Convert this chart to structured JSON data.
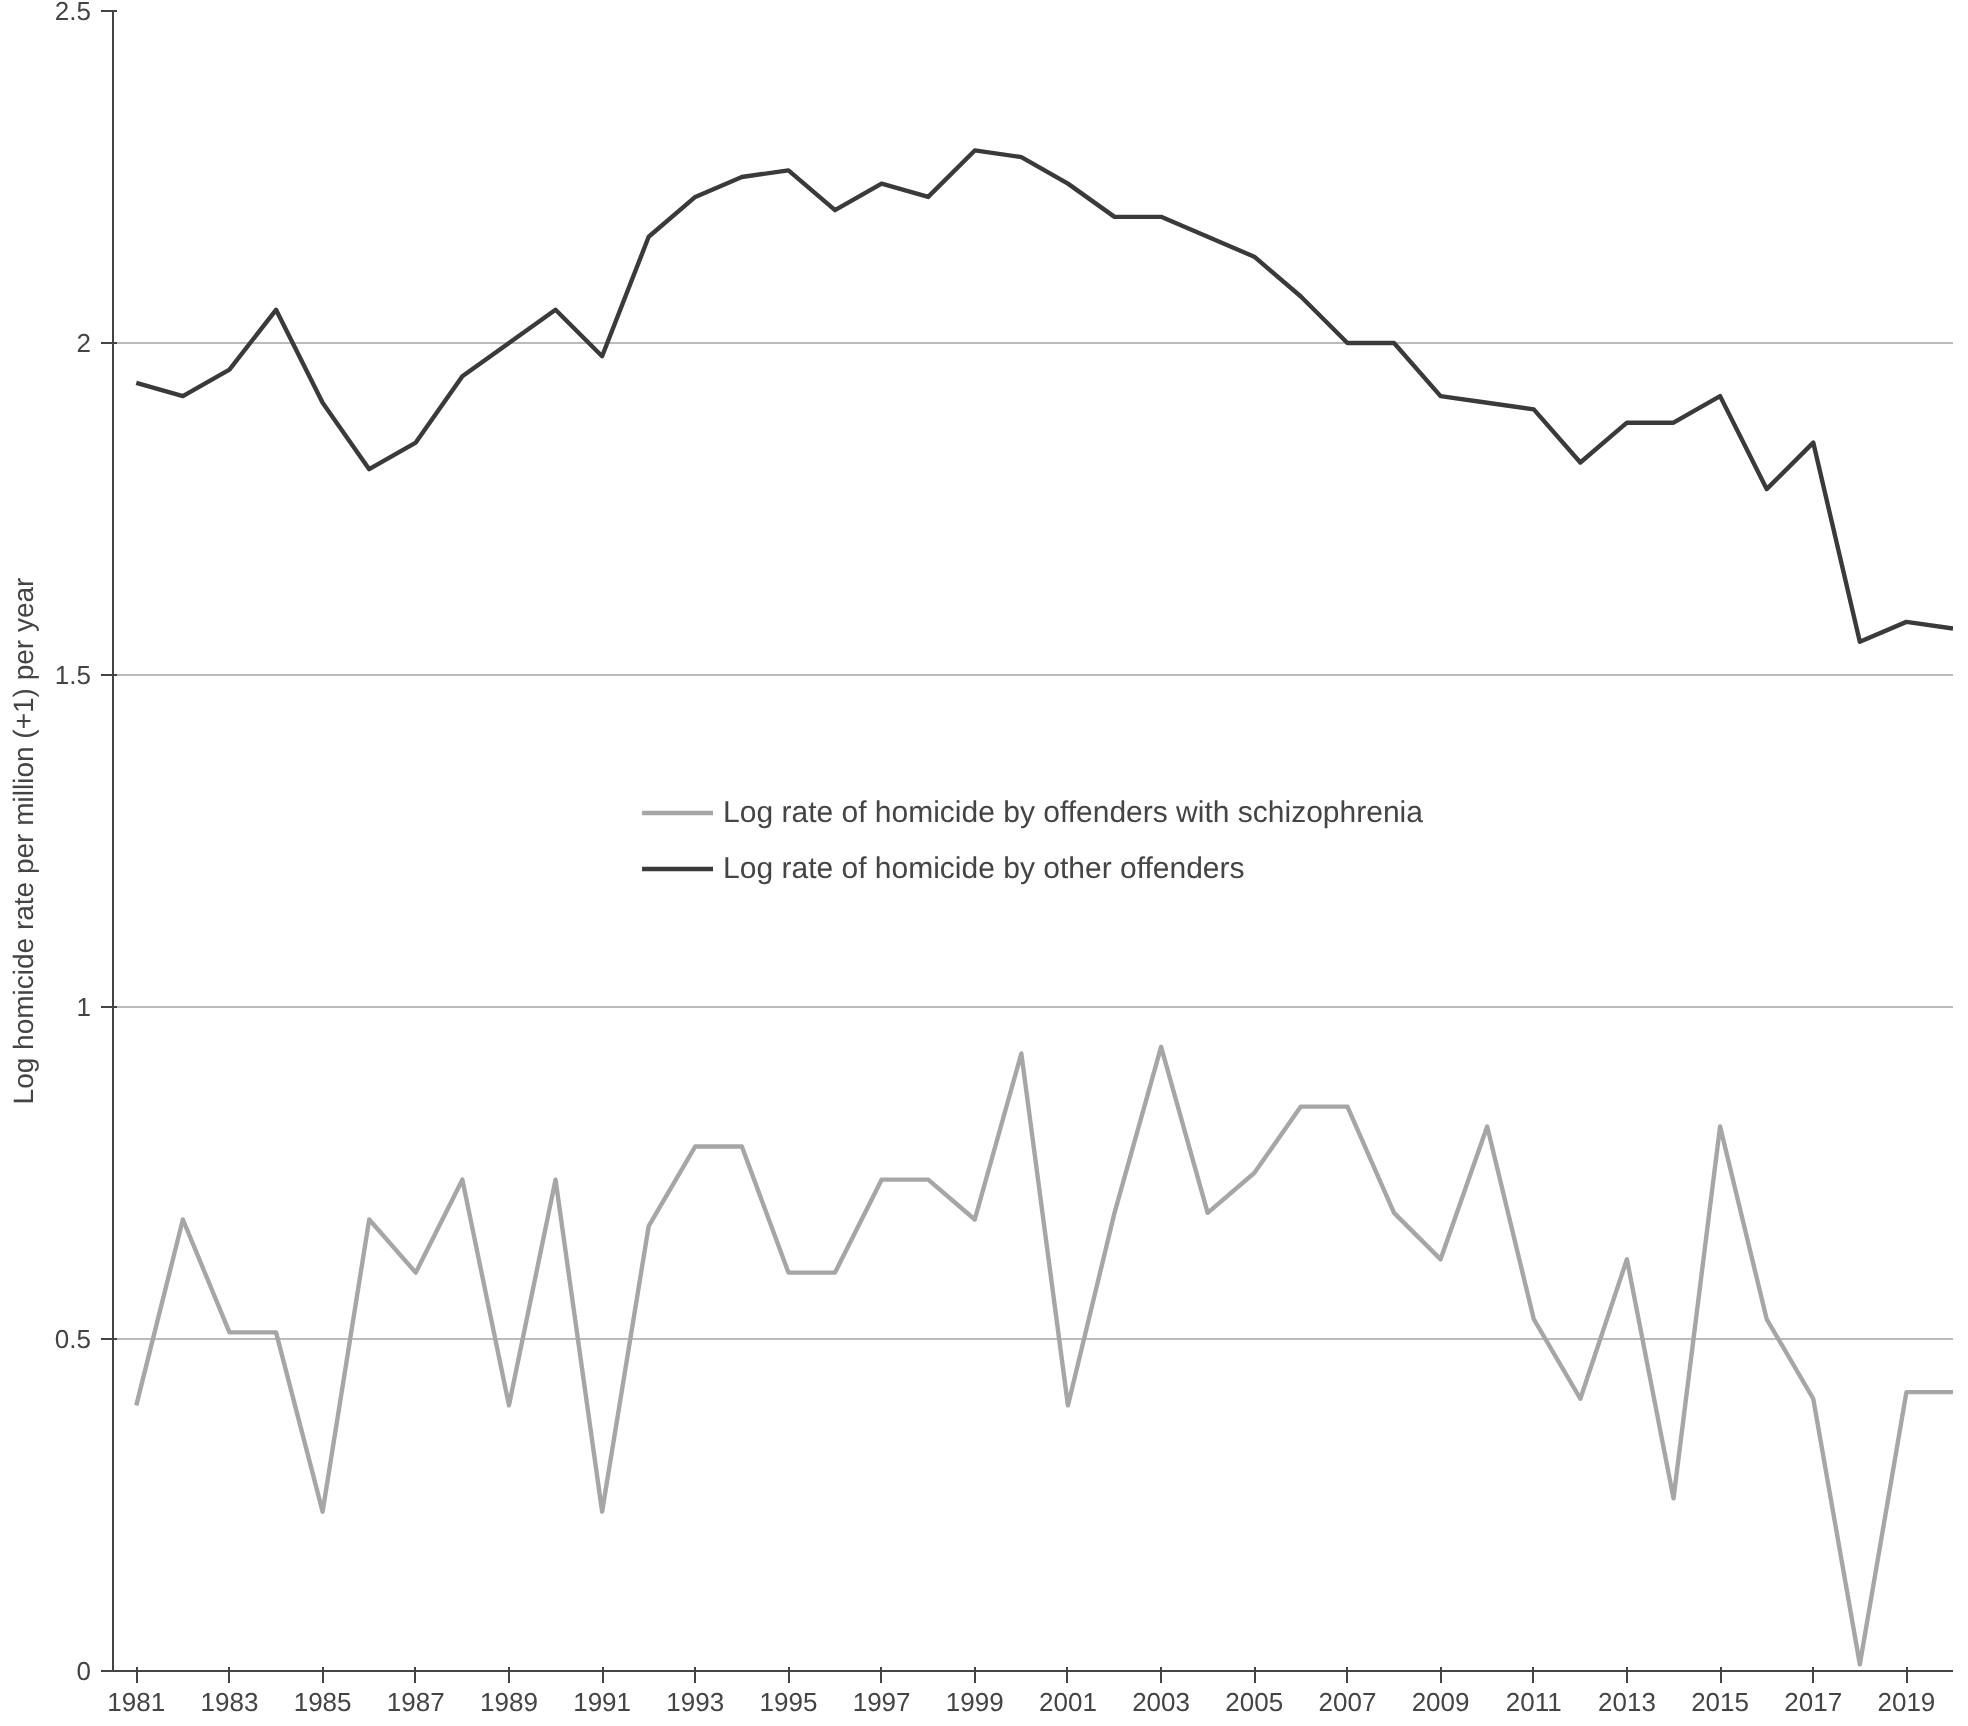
{
  "chart_data": {
    "type": "line",
    "ylabel": "Log homicide rate per million (+1) per year",
    "x": [
      1981,
      1982,
      1983,
      1984,
      1985,
      1986,
      1987,
      1988,
      1989,
      1990,
      1991,
      1992,
      1993,
      1994,
      1995,
      1996,
      1997,
      1998,
      1999,
      2000,
      2001,
      2002,
      2003,
      2004,
      2005,
      2006,
      2007,
      2008,
      2009,
      2010,
      2011,
      2012,
      2013,
      2014,
      2015,
      2016,
      2017,
      2018,
      2019,
      2020
    ],
    "series": [
      {
        "name": "Log rate of homicide by offenders with schizophrenia",
        "color": "#a6a6a6",
        "values": [
          0.4,
          0.68,
          0.51,
          0.51,
          0.24,
          0.68,
          0.6,
          0.74,
          0.4,
          0.74,
          0.24,
          0.67,
          0.79,
          0.79,
          0.6,
          0.6,
          0.74,
          0.74,
          0.68,
          0.93,
          0.4,
          0.69,
          0.94,
          0.69,
          0.75,
          0.85,
          0.85,
          0.69,
          0.62,
          0.82,
          0.53,
          0.41,
          0.62,
          0.26,
          0.82,
          0.53,
          0.41,
          0.01,
          0.42,
          0.42
        ]
      },
      {
        "name": "Log rate of homicide by other offenders",
        "color": "#3a3a3a",
        "values": [
          1.94,
          1.92,
          1.96,
          2.05,
          1.91,
          1.81,
          1.85,
          1.95,
          2.0,
          2.05,
          1.98,
          2.16,
          2.22,
          2.25,
          2.26,
          2.2,
          2.24,
          2.22,
          2.29,
          2.28,
          2.24,
          2.19,
          2.19,
          2.16,
          2.13,
          2.07,
          2.0,
          2.0,
          1.92,
          1.91,
          1.9,
          1.82,
          1.88,
          1.88,
          1.92,
          1.78,
          1.85,
          1.55,
          1.58,
          1.57
        ]
      }
    ],
    "xlim": [
      1980.5,
      2020
    ],
    "xticks": [
      1981,
      1983,
      1985,
      1987,
      1989,
      1991,
      1993,
      1995,
      1997,
      1999,
      2001,
      2003,
      2005,
      2007,
      2009,
      2011,
      2013,
      2015,
      2017,
      2019
    ],
    "ylim": [
      0,
      2.5
    ],
    "yticks": [
      0,
      0.5,
      1,
      1.5,
      2,
      {
        "value": 2.5,
        "label": "2.5"
      }
    ],
    "grid": "y",
    "legend": "center",
    "marker": "none",
    "line_style": "solid"
  }
}
